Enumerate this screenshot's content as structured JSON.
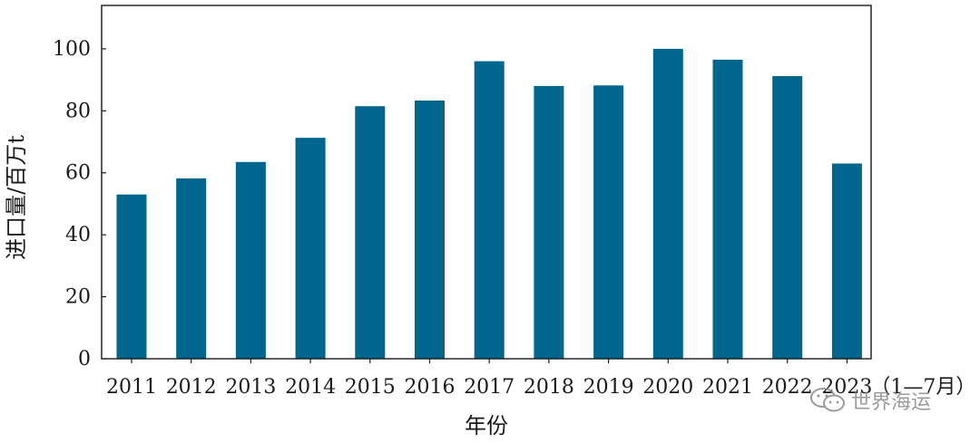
{
  "chart_data": {
    "type": "bar",
    "categories": [
      "2011",
      "2012",
      "2013",
      "2014",
      "2015",
      "2016",
      "2017",
      "2018",
      "2019",
      "2020",
      "2021",
      "2022",
      "2023"
    ],
    "category_suffix": "（1—7月）",
    "values": [
      53,
      58.2,
      63.5,
      71.3,
      81.5,
      83.3,
      96,
      88,
      88.2,
      100,
      96.5,
      91.2,
      63
    ],
    "ylabel": "进口量/百万t",
    "xlabel": "年份",
    "ylim": [
      0,
      114
    ],
    "yticks": [
      0,
      20,
      40,
      60,
      80,
      100
    ],
    "grid": false,
    "bar_color": "#00668e"
  },
  "watermark": {
    "text": "世界海运",
    "icon": "wechat-icon"
  }
}
